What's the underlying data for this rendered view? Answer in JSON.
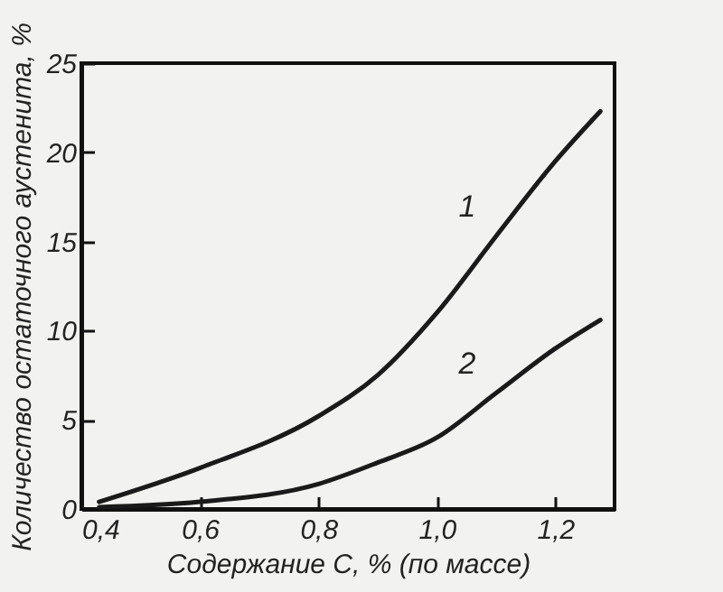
{
  "chart_data": {
    "type": "line",
    "xlabel": "Содержание C, % (по массе)",
    "ylabel": "Количество остаточного аустенита, %",
    "xlim": [
      0.4,
      1.3
    ],
    "ylim": [
      0,
      25
    ],
    "xticks": [
      {
        "value": 0.4,
        "label": "0,4"
      },
      {
        "value": 0.6,
        "label": "0,6"
      },
      {
        "value": 0.8,
        "label": "0,8"
      },
      {
        "value": 1.0,
        "label": "1,0"
      },
      {
        "value": 1.2,
        "label": "1,2"
      }
    ],
    "yticks": [
      0,
      5,
      10,
      15,
      20,
      25
    ],
    "grid": false,
    "marker": "none",
    "line_style": "solid",
    "series": [
      {
        "name": "1",
        "color": "#1a1a1a",
        "x": [
          0.43,
          0.6,
          0.8,
          0.9,
          1.0,
          1.1,
          1.2,
          1.276
        ],
        "values": [
          0.4,
          2.3,
          5.2,
          7.5,
          11.0,
          15.3,
          19.5,
          22.3
        ]
      },
      {
        "name": "2",
        "color": "#1a1a1a",
        "x": [
          0.43,
          0.6,
          0.8,
          0.9,
          1.0,
          1.1,
          1.2,
          1.276
        ],
        "values": [
          0.1,
          0.4,
          1.4,
          2.6,
          4.0,
          6.5,
          9.0,
          10.6
        ]
      }
    ]
  }
}
